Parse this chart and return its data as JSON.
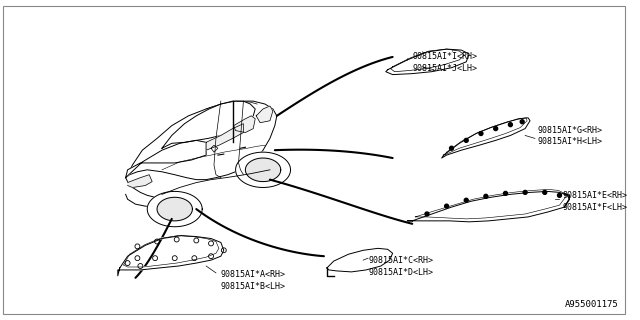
{
  "background_color": "#ffffff",
  "border_color": "#aaaaaa",
  "diagram_id": "A955001175",
  "label_IJ": "90815AI*I<RH>\n90815AI*J<LH>",
  "label_GH": "90815AI*G<RH>\n90815AI*H<LH>",
  "label_EF": "90815AI*E<RH>\n90815AI*F<LH>",
  "label_CD": "90815AI*C<RH>\n90815AI*D<LH>",
  "label_AB": "90815AI*A<RH>\n90815AI*B<LH>",
  "fontsize": 6.0
}
